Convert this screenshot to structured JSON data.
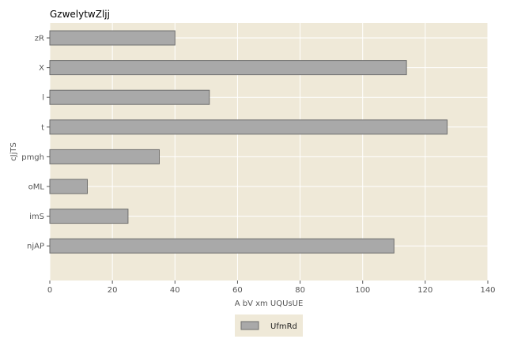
{
  "chart_data": {
    "type": "bar",
    "orientation": "horizontal",
    "title": "GzwelytwZljj",
    "xlabel": "A bV xm UQUsUE",
    "ylabel": "cJjTS",
    "categories": [
      "zR",
      "X",
      "l",
      "t",
      "pmgh",
      "oML",
      "imS",
      "njAP"
    ],
    "series": [
      {
        "name": "UfmRd",
        "values": [
          40,
          114,
          51,
          127,
          35,
          12,
          25,
          110
        ]
      }
    ],
    "xlim": [
      0,
      140
    ],
    "xticks": [
      0,
      20,
      40,
      60,
      80,
      100,
      120,
      140
    ],
    "grid": true,
    "legend_position": "bottom-center",
    "colors": {
      "plot_background": "#efe9d8",
      "bar_fill": "#a9a9a9",
      "bar_stroke": "#6e6e6e",
      "grid": "#ffffff"
    }
  }
}
